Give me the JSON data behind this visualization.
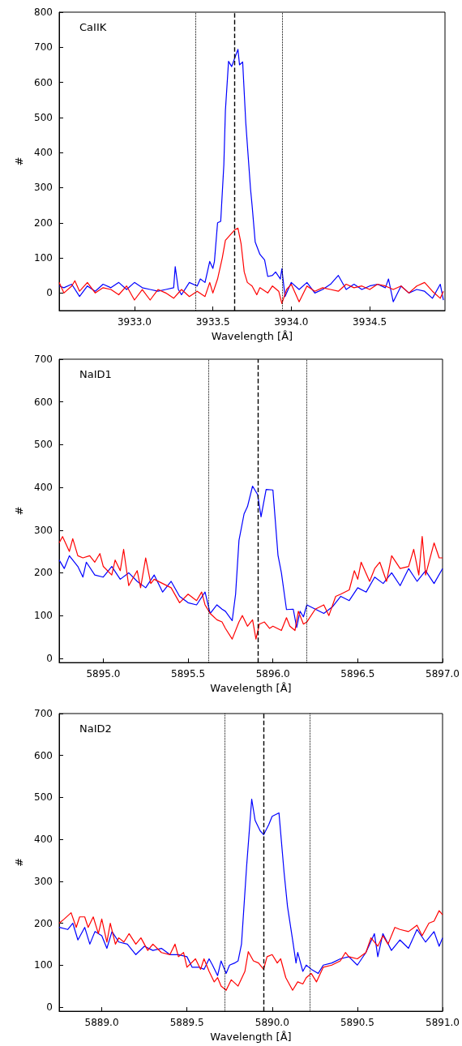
{
  "chart_data": [
    {
      "type": "line",
      "xlabel": "Wavelength [Å]",
      "ylabel": "#",
      "annotations": [
        "CaIIK"
      ],
      "xlim": [
        3932.52,
        3934.98
      ],
      "ylim": [
        -50,
        800
      ],
      "xticks": [
        {
          "value": 3933,
          "label": "3933.0"
        },
        {
          "value": 3933.5,
          "label": "3933.5"
        },
        {
          "value": 3934,
          "label": "3934.0"
        },
        {
          "value": 3934.5,
          "label": "3934.5"
        }
      ],
      "yticks": [
        0,
        100,
        200,
        300,
        400,
        500,
        600,
        700,
        800
      ],
      "grid": false,
      "ref_lines": [
        {
          "axis": "x",
          "value": 3933.39,
          "color": "#000000",
          "line_style": "dotted"
        },
        {
          "axis": "x",
          "value": 3933.64,
          "color": "#000000",
          "line_style": "dashed"
        },
        {
          "axis": "x",
          "value": 3933.94,
          "color": "#000000",
          "line_style": "dotted"
        }
      ],
      "series": [
        {
          "color": "#0000ff",
          "x": [
            3932.52,
            3932.55,
            3932.6,
            3932.65,
            3932.7,
            3932.75,
            3932.8,
            3932.85,
            3932.9,
            3932.95,
            3933.0,
            3933.05,
            3933.1,
            3933.15,
            3933.2,
            3933.25,
            3933.26,
            3933.28,
            3933.3,
            3933.35,
            3933.4,
            3933.42,
            3933.45,
            3933.48,
            3933.5,
            3933.51,
            3933.53,
            3933.55,
            3933.57,
            3933.58,
            3933.6,
            3933.62,
            3933.64,
            3933.66,
            3933.67,
            3933.69,
            3933.71,
            3933.74,
            3933.75,
            3933.77,
            3933.8,
            3933.83,
            3933.85,
            3933.88,
            3933.9,
            3933.93,
            3933.94,
            3933.96,
            3934.0,
            3934.05,
            3934.1,
            3934.15,
            3934.2,
            3934.25,
            3934.3,
            3934.35,
            3934.4,
            3934.45,
            3934.5,
            3934.55,
            3934.6,
            3934.62,
            3934.65,
            3934.7,
            3934.75,
            3934.8,
            3934.85,
            3934.9,
            3934.95,
            3934.97
          ],
          "values": [
            20,
            15,
            25,
            -10,
            20,
            5,
            25,
            15,
            30,
            10,
            30,
            15,
            10,
            5,
            10,
            15,
            75,
            10,
            -5,
            30,
            20,
            40,
            30,
            90,
            70,
            90,
            200,
            204,
            365,
            520,
            660,
            645,
            670,
            694,
            650,
            658,
            484,
            297,
            250,
            145,
            110,
            94,
            47,
            50,
            60,
            40,
            69,
            -10,
            30,
            10,
            30,
            0,
            10,
            25,
            50,
            10,
            25,
            10,
            20,
            25,
            15,
            40,
            -25,
            20,
            0,
            10,
            5,
            -15,
            25,
            -20
          ]
        },
        {
          "color": "#ff0000",
          "x": [
            3932.52,
            3932.55,
            3932.6,
            3932.62,
            3932.65,
            3932.7,
            3932.75,
            3932.8,
            3932.85,
            3932.9,
            3932.95,
            3933.0,
            3933.05,
            3933.1,
            3933.15,
            3933.2,
            3933.25,
            3933.3,
            3933.35,
            3933.4,
            3933.45,
            3933.48,
            3933.5,
            3933.53,
            3933.56,
            3933.58,
            3933.61,
            3933.64,
            3933.66,
            3933.68,
            3933.7,
            3933.72,
            3933.75,
            3933.78,
            3933.8,
            3933.85,
            3933.88,
            3933.92,
            3933.94,
            3933.97,
            3934.0,
            3934.05,
            3934.1,
            3934.15,
            3934.2,
            3934.25,
            3934.3,
            3934.35,
            3934.4,
            3934.45,
            3934.5,
            3934.55,
            3934.6,
            3934.65,
            3934.7,
            3934.75,
            3934.8,
            3934.85,
            3934.9,
            3934.95,
            3934.97
          ],
          "values": [
            30,
            0,
            20,
            35,
            5,
            30,
            0,
            15,
            10,
            -5,
            20,
            -20,
            10,
            -20,
            10,
            0,
            -15,
            10,
            -10,
            5,
            -10,
            30,
            0,
            40,
            100,
            150,
            165,
            180,
            185,
            140,
            60,
            30,
            20,
            -5,
            15,
            0,
            20,
            5,
            -30,
            10,
            25,
            -25,
            20,
            5,
            15,
            10,
            5,
            25,
            15,
            20,
            10,
            25,
            20,
            10,
            20,
            0,
            20,
            30,
            5,
            -15,
            5
          ]
        }
      ]
    },
    {
      "type": "line",
      "xlabel": "Wavelength [Å]",
      "ylabel": "#",
      "annotations": [
        "NaID1"
      ],
      "xlim": [
        5894.74,
        5897.0
      ],
      "ylim": [
        -10,
        700
      ],
      "xticks": [
        {
          "value": 5895,
          "label": "5895.0"
        },
        {
          "value": 5895.5,
          "label": "5895.5"
        },
        {
          "value": 5896,
          "label": "5896.0"
        },
        {
          "value": 5896.5,
          "label": "5896.5"
        },
        {
          "value": 5897,
          "label": "5897.0"
        }
      ],
      "yticks": [
        0,
        100,
        200,
        300,
        400,
        500,
        600,
        700
      ],
      "grid": false,
      "ref_lines": [
        {
          "axis": "x",
          "value": 5895.62,
          "color": "#000000",
          "line_style": "dotted"
        },
        {
          "axis": "x",
          "value": 5895.91,
          "color": "#000000",
          "line_style": "dashed"
        },
        {
          "axis": "x",
          "value": 5896.2,
          "color": "#000000",
          "line_style": "dotted"
        }
      ],
      "series": [
        {
          "color": "#0000ff",
          "x": [
            5894.74,
            5894.77,
            5894.8,
            5894.85,
            5894.88,
            5894.9,
            5894.95,
            5895.0,
            5895.05,
            5895.1,
            5895.15,
            5895.2,
            5895.25,
            5895.3,
            5895.35,
            5895.4,
            5895.45,
            5895.5,
            5895.55,
            5895.6,
            5895.63,
            5895.67,
            5895.7,
            5895.72,
            5895.76,
            5895.78,
            5895.8,
            5895.83,
            5895.85,
            5895.88,
            5895.91,
            5895.93,
            5895.96,
            5896.0,
            5896.03,
            5896.05,
            5896.08,
            5896.12,
            5896.14,
            5896.16,
            5896.18,
            5896.2,
            5896.25,
            5896.3,
            5896.35,
            5896.4,
            5896.45,
            5896.5,
            5896.55,
            5896.6,
            5896.65,
            5896.7,
            5896.75,
            5896.8,
            5896.85,
            5896.9,
            5896.95,
            5897.0
          ],
          "values": [
            230,
            210,
            240,
            215,
            190,
            225,
            195,
            190,
            215,
            185,
            200,
            180,
            165,
            195,
            155,
            180,
            145,
            130,
            125,
            155,
            105,
            125,
            115,
            110,
            88,
            150,
            276,
            338,
            355,
            403,
            383,
            331,
            395,
            394,
            241,
            200,
            114,
            115,
            72,
            110,
            97,
            125,
            115,
            105,
            120,
            145,
            135,
            165,
            155,
            190,
            175,
            200,
            170,
            210,
            180,
            205,
            175,
            210
          ]
        },
        {
          "color": "#ff0000",
          "x": [
            5894.74,
            5894.76,
            5894.8,
            5894.82,
            5894.85,
            5894.88,
            5894.92,
            5894.95,
            5894.98,
            5895.0,
            5895.05,
            5895.07,
            5895.1,
            5895.12,
            5895.15,
            5895.2,
            5895.22,
            5895.25,
            5895.28,
            5895.3,
            5895.35,
            5895.4,
            5895.45,
            5895.5,
            5895.55,
            5895.58,
            5895.6,
            5895.63,
            5895.67,
            5895.7,
            5895.72,
            5895.76,
            5895.8,
            5895.82,
            5895.85,
            5895.88,
            5895.9,
            5895.92,
            5895.95,
            5895.98,
            5896.0,
            5896.05,
            5896.08,
            5896.1,
            5896.13,
            5896.15,
            5896.18,
            5896.2,
            5896.25,
            5896.3,
            5896.33,
            5896.37,
            5896.4,
            5896.45,
            5896.48,
            5896.5,
            5896.52,
            5896.57,
            5896.6,
            5896.63,
            5896.67,
            5896.7,
            5896.75,
            5896.8,
            5896.83,
            5896.86,
            5896.88,
            5896.9,
            5896.95,
            5896.98,
            5897.0
          ],
          "values": [
            270,
            285,
            250,
            280,
            240,
            235,
            240,
            225,
            245,
            215,
            195,
            230,
            205,
            255,
            170,
            205,
            165,
            235,
            175,
            185,
            175,
            165,
            130,
            150,
            135,
            155,
            125,
            105,
            90,
            85,
            70,
            45,
            85,
            100,
            75,
            90,
            45,
            80,
            85,
            70,
            75,
            65,
            95,
            75,
            65,
            110,
            80,
            85,
            115,
            125,
            100,
            145,
            150,
            160,
            205,
            185,
            225,
            180,
            210,
            225,
            180,
            240,
            210,
            215,
            255,
            195,
            285,
            195,
            270,
            235,
            235
          ]
        }
      ]
    },
    {
      "type": "line",
      "xlabel": "Wavelength [Å]",
      "ylabel": "#",
      "annotations": [
        "NaID2"
      ],
      "xlim": [
        5888.75,
        5891.0
      ],
      "ylim": [
        -10,
        700
      ],
      "xticks": [
        {
          "value": 5889,
          "label": "5889.0"
        },
        {
          "value": 5889.5,
          "label": "5889.5"
        },
        {
          "value": 5890,
          "label": "5890.0"
        },
        {
          "value": 5890.5,
          "label": "5890.5"
        },
        {
          "value": 5891,
          "label": "5891.0"
        }
      ],
      "yticks": [
        0,
        100,
        200,
        300,
        400,
        500,
        600,
        700
      ],
      "grid": false,
      "ref_lines": [
        {
          "axis": "x",
          "value": 5889.72,
          "color": "#000000",
          "line_style": "dotted"
        },
        {
          "axis": "x",
          "value": 5889.95,
          "color": "#000000",
          "line_style": "dashed"
        },
        {
          "axis": "x",
          "value": 5890.22,
          "color": "#000000",
          "line_style": "dotted"
        }
      ],
      "series": [
        {
          "color": "#0000ff",
          "x": [
            5888.75,
            5888.8,
            5888.83,
            5888.86,
            5888.9,
            5888.93,
            5888.96,
            5889.0,
            5889.03,
            5889.06,
            5889.1,
            5889.15,
            5889.2,
            5889.25,
            5889.3,
            5889.35,
            5889.4,
            5889.45,
            5889.5,
            5889.53,
            5889.57,
            5889.6,
            5889.63,
            5889.65,
            5889.68,
            5889.7,
            5889.73,
            5889.75,
            5889.78,
            5889.8,
            5889.82,
            5889.85,
            5889.88,
            5889.9,
            5889.93,
            5889.95,
            5889.98,
            5890.0,
            5890.04,
            5890.07,
            5890.09,
            5890.12,
            5890.14,
            5890.15,
            5890.18,
            5890.2,
            5890.23,
            5890.27,
            5890.3,
            5890.35,
            5890.4,
            5890.45,
            5890.5,
            5890.55,
            5890.6,
            5890.62,
            5890.65,
            5890.7,
            5890.75,
            5890.8,
            5890.85,
            5890.9,
            5890.95,
            5890.98,
            5891.0
          ],
          "values": [
            190,
            185,
            200,
            160,
            190,
            150,
            180,
            170,
            140,
            180,
            155,
            150,
            125,
            145,
            135,
            140,
            125,
            125,
            120,
            95,
            95,
            90,
            115,
            100,
            75,
            110,
            80,
            100,
            105,
            110,
            150,
            335,
            496,
            445,
            420,
            411,
            435,
            455,
            463,
            321,
            240,
            160,
            105,
            130,
            85,
            100,
            90,
            80,
            100,
            105,
            115,
            120,
            100,
            130,
            175,
            120,
            175,
            135,
            160,
            140,
            185,
            155,
            180,
            145,
            165
          ]
        },
        {
          "color": "#ff0000",
          "x": [
            5888.75,
            5888.78,
            5888.82,
            5888.85,
            5888.87,
            5888.9,
            5888.92,
            5888.95,
            5888.98,
            5889.0,
            5889.03,
            5889.05,
            5889.08,
            5889.1,
            5889.13,
            5889.16,
            5889.2,
            5889.23,
            5889.27,
            5889.3,
            5889.35,
            5889.4,
            5889.43,
            5889.45,
            5889.48,
            5889.5,
            5889.55,
            5889.58,
            5889.6,
            5889.63,
            5889.66,
            5889.68,
            5889.7,
            5889.73,
            5889.76,
            5889.8,
            5889.84,
            5889.86,
            5889.89,
            5889.92,
            5889.95,
            5889.97,
            5890.0,
            5890.03,
            5890.05,
            5890.08,
            5890.1,
            5890.12,
            5890.15,
            5890.18,
            5890.2,
            5890.23,
            5890.26,
            5890.3,
            5890.35,
            5890.4,
            5890.43,
            5890.45,
            5890.5,
            5890.55,
            5890.58,
            5890.62,
            5890.65,
            5890.68,
            5890.72,
            5890.75,
            5890.8,
            5890.85,
            5890.88,
            5890.92,
            5890.95,
            5890.98,
            5891.0
          ],
          "values": [
            200,
            210,
            225,
            190,
            215,
            215,
            190,
            215,
            175,
            210,
            155,
            200,
            150,
            165,
            155,
            175,
            150,
            165,
            135,
            150,
            130,
            125,
            150,
            120,
            130,
            95,
            115,
            90,
            115,
            85,
            60,
            70,
            50,
            40,
            65,
            50,
            85,
            132,
            110,
            105,
            90,
            120,
            125,
            105,
            115,
            70,
            55,
            40,
            60,
            55,
            70,
            80,
            60,
            95,
            100,
            110,
            130,
            120,
            115,
            130,
            165,
            145,
            170,
            150,
            190,
            185,
            180,
            195,
            170,
            200,
            205,
            230,
            220
          ]
        }
      ]
    }
  ]
}
